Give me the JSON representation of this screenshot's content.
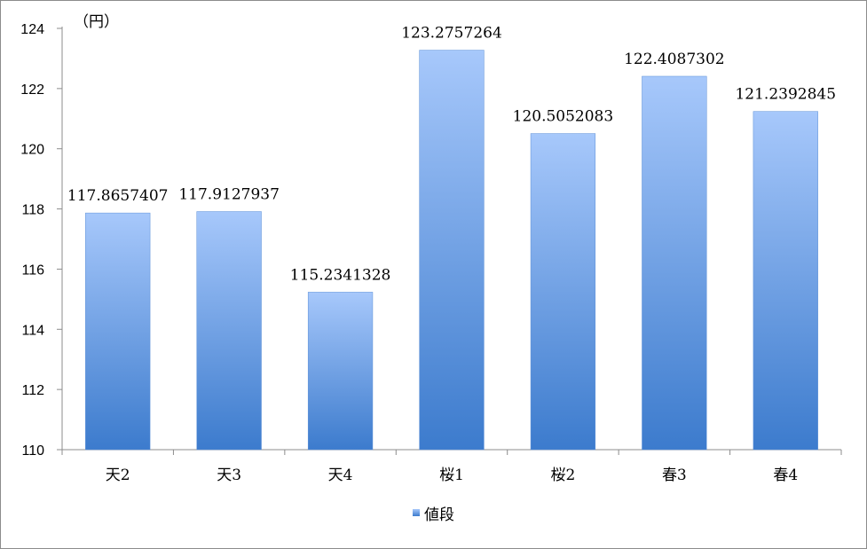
{
  "chart_data": {
    "type": "bar",
    "categories": [
      "天2",
      "天3",
      "天4",
      "桜1",
      "桜2",
      "春3",
      "春4"
    ],
    "series": [
      {
        "name": "値段",
        "values": [
          117.8657407,
          117.9127937,
          115.2341328,
          123.2757264,
          120.5052083,
          122.4087302,
          121.2392845
        ],
        "value_labels": [
          "117.8657407",
          "117.9127937",
          "115.2341328",
          "123.2757264",
          "120.5052083",
          "122.4087302",
          "121.2392845"
        ]
      }
    ],
    "y_unit": "（円）",
    "ylim": [
      110,
      124
    ],
    "yticks": [
      "110",
      "112",
      "114",
      "116",
      "118",
      "120",
      "122",
      "124"
    ],
    "grid": false,
    "legend_position": "bottom",
    "colors": {
      "bar_top": "#a7c8fb",
      "bar_bottom": "#3c7bcd",
      "axis": "#8c8c8c"
    }
  }
}
